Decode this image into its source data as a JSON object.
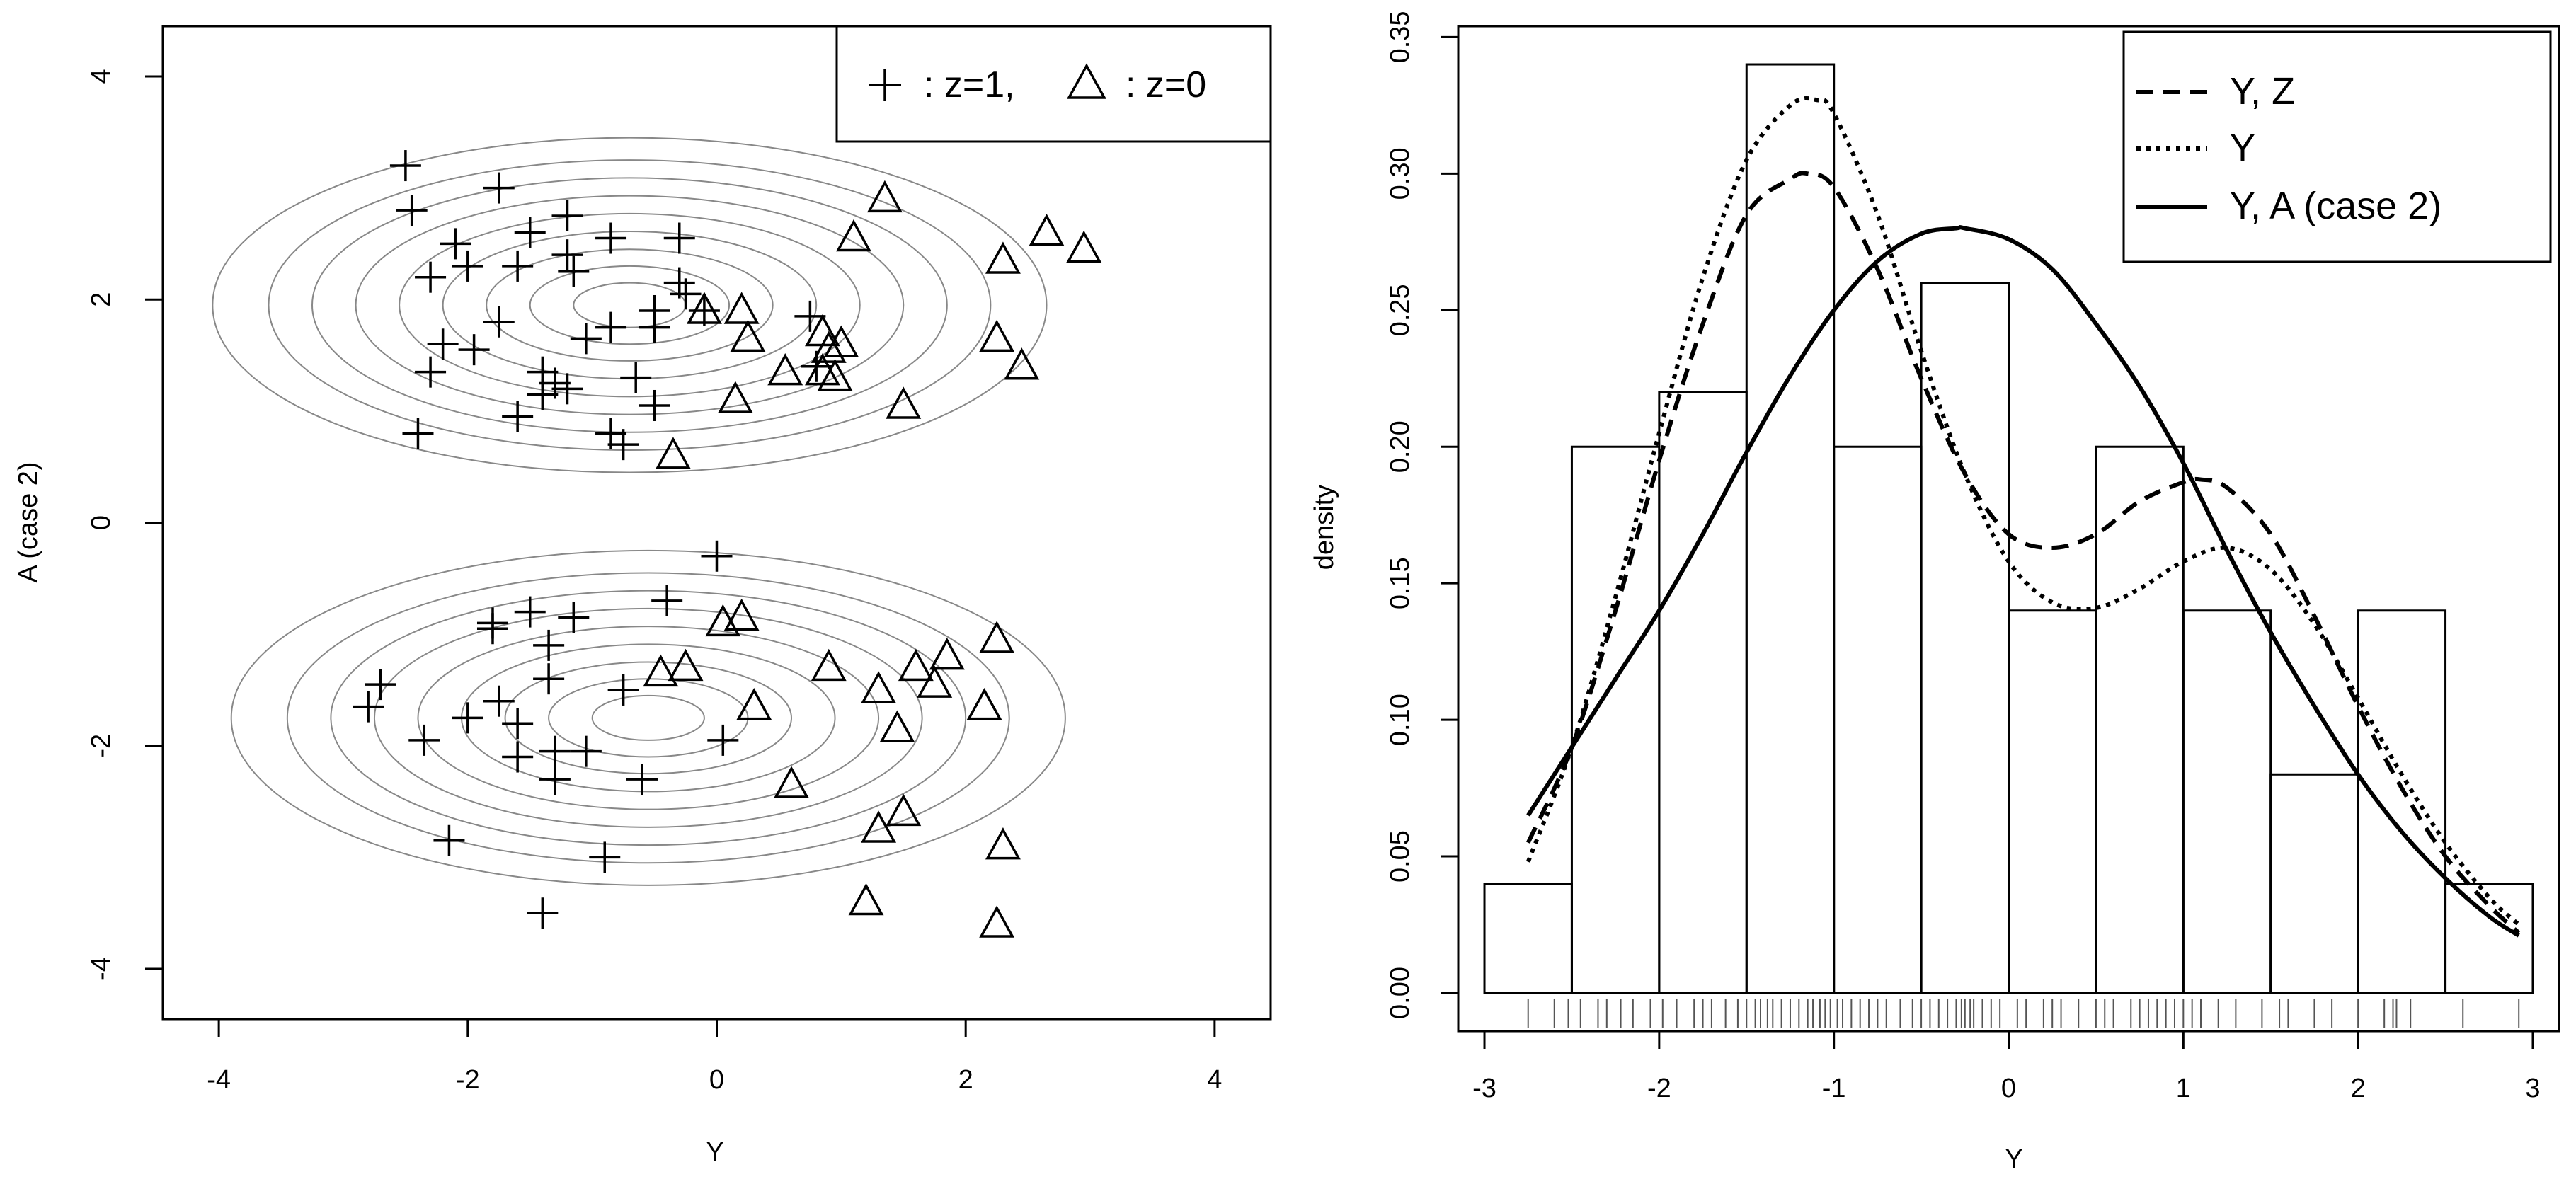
{
  "chart_data": [
    {
      "type": "scatter",
      "xlabel": "Y",
      "ylabel": "A (case 2)",
      "xlim": [
        -4.45,
        4.45
      ],
      "ylim": [
        -4.45,
        4.45
      ],
      "xticks": [
        "-4",
        "-2",
        "0",
        "2",
        "4"
      ],
      "xtick_values": [
        -4,
        -2,
        0,
        2,
        4
      ],
      "yticks": [
        "-4",
        "-2",
        "0",
        "2",
        "4"
      ],
      "ytick_values": [
        -4,
        -2,
        0,
        2,
        4
      ],
      "legend": {
        "position": "top-right",
        "entries": [
          {
            "symbol": "plus",
            "label": ": z=1,"
          },
          {
            "symbol": "triangle",
            "label": ": z=0"
          }
        ]
      },
      "contours": [
        {
          "cx": -0.7,
          "cy": 1.95,
          "rx": [
            0.45,
            0.8,
            1.15,
            1.5,
            1.85,
            2.2,
            2.55,
            2.9,
            3.35
          ],
          "ry": [
            0.2,
            0.35,
            0.5,
            0.66,
            0.82,
            0.98,
            1.14,
            1.3,
            1.5
          ]
        },
        {
          "cx": -0.55,
          "cy": -1.75,
          "rx": [
            0.45,
            0.8,
            1.15,
            1.5,
            1.85,
            2.2,
            2.55,
            2.9,
            3.35
          ],
          "ry": [
            0.2,
            0.35,
            0.5,
            0.66,
            0.82,
            0.98,
            1.14,
            1.3,
            1.5
          ]
        }
      ],
      "series": [
        {
          "name": "z=1",
          "marker": "plus",
          "points": [
            [
              -2.5,
              3.2
            ],
            [
              -2.45,
              2.8
            ],
            [
              -1.75,
              3.0
            ],
            [
              -2.3,
              2.2
            ],
            [
              -2.1,
              2.5
            ],
            [
              -2.0,
              2.3
            ],
            [
              -1.5,
              2.6
            ],
            [
              -1.2,
              2.75
            ],
            [
              -1.2,
              2.4
            ],
            [
              -0.85,
              2.55
            ],
            [
              -0.3,
              2.55
            ],
            [
              -1.6,
              2.3
            ],
            [
              -1.15,
              2.25
            ],
            [
              -0.3,
              2.15
            ],
            [
              -0.25,
              2.05
            ],
            [
              -1.75,
              1.8
            ],
            [
              -2.2,
              1.6
            ],
            [
              -1.95,
              1.55
            ],
            [
              -2.3,
              1.35
            ],
            [
              -1.4,
              1.35
            ],
            [
              -1.3,
              1.25
            ],
            [
              -1.4,
              1.15
            ],
            [
              -1.05,
              1.65
            ],
            [
              -0.85,
              1.75
            ],
            [
              -0.5,
              1.75
            ],
            [
              -0.5,
              1.9
            ],
            [
              -0.1,
              1.9
            ],
            [
              -0.65,
              1.3
            ],
            [
              -1.2,
              1.2
            ],
            [
              -0.5,
              1.05
            ],
            [
              -1.6,
              0.95
            ],
            [
              -2.4,
              0.8
            ],
            [
              -0.85,
              0.8
            ],
            [
              -0.75,
              0.7
            ],
            [
              0.75,
              1.85
            ],
            [
              0.8,
              1.4
            ],
            [
              0.0,
              -0.3
            ],
            [
              -0.4,
              -0.7
            ],
            [
              -1.5,
              -0.8
            ],
            [
              -1.8,
              -0.9
            ],
            [
              -1.15,
              -0.85
            ],
            [
              -1.35,
              -1.1
            ],
            [
              -1.35,
              -1.4
            ],
            [
              -0.75,
              -1.5
            ],
            [
              -2.7,
              -1.45
            ],
            [
              -2.8,
              -1.65
            ],
            [
              -1.75,
              -1.6
            ],
            [
              -1.6,
              -1.8
            ],
            [
              -2.35,
              -1.95
            ],
            [
              -2.0,
              -1.75
            ],
            [
              -1.05,
              -2.05
            ],
            [
              -1.6,
              -2.1
            ],
            [
              -1.3,
              -2.3
            ],
            [
              -0.6,
              -2.3
            ],
            [
              0.05,
              -1.95
            ],
            [
              -2.15,
              -2.85
            ],
            [
              -0.9,
              -3.0
            ],
            [
              -1.4,
              -3.5
            ],
            [
              -1.3,
              -2.05
            ],
            [
              -1.8,
              -0.95
            ]
          ]
        },
        {
          "name": "z=0",
          "marker": "triangle",
          "points": [
            [
              1.35,
              2.9
            ],
            [
              2.65,
              2.6
            ],
            [
              2.95,
              2.45
            ],
            [
              2.3,
              2.35
            ],
            [
              1.1,
              2.55
            ],
            [
              0.2,
              1.9
            ],
            [
              -0.1,
              1.9
            ],
            [
              0.25,
              1.65
            ],
            [
              0.85,
              1.7
            ],
            [
              0.9,
              1.55
            ],
            [
              1.0,
              1.6
            ],
            [
              0.95,
              1.3
            ],
            [
              0.85,
              1.35
            ],
            [
              0.55,
              1.35
            ],
            [
              0.15,
              1.1
            ],
            [
              1.5,
              1.05
            ],
            [
              2.25,
              1.65
            ],
            [
              2.45,
              1.4
            ],
            [
              -0.35,
              0.6
            ],
            [
              0.05,
              -0.9
            ],
            [
              0.2,
              -0.85
            ],
            [
              2.25,
              -1.05
            ],
            [
              1.85,
              -1.2
            ],
            [
              1.6,
              -1.3
            ],
            [
              0.9,
              -1.3
            ],
            [
              -0.25,
              -1.3
            ],
            [
              -0.45,
              -1.35
            ],
            [
              1.3,
              -1.5
            ],
            [
              1.75,
              -1.45
            ],
            [
              2.15,
              -1.65
            ],
            [
              0.3,
              -1.65
            ],
            [
              1.45,
              -1.85
            ],
            [
              0.6,
              -2.35
            ],
            [
              1.3,
              -2.75
            ],
            [
              1.5,
              -2.6
            ],
            [
              2.3,
              -2.9
            ],
            [
              1.2,
              -3.4
            ],
            [
              2.25,
              -3.6
            ]
          ]
        }
      ]
    },
    {
      "type": "histogram",
      "xlabel": "Y",
      "ylabel": "density",
      "xlim": [
        -3.15,
        3.15
      ],
      "ylim": [
        -0.014,
        0.354
      ],
      "xticks": [
        "-3",
        "-2",
        "-1",
        "0",
        "1",
        "2",
        "3"
      ],
      "xtick_values": [
        -3,
        -2,
        -1,
        0,
        1,
        2,
        3
      ],
      "yticks": [
        "0.00",
        "0.05",
        "0.10",
        "0.15",
        "0.20",
        "0.25",
        "0.30",
        "0.35"
      ],
      "ytick_values": [
        0,
        0.05,
        0.1,
        0.15,
        0.2,
        0.25,
        0.3,
        0.35
      ],
      "bins": [
        {
          "from": -3.0,
          "to": -2.5,
          "density": 0.04
        },
        {
          "from": -2.5,
          "to": -2.0,
          "density": 0.2
        },
        {
          "from": -2.0,
          "to": -1.5,
          "density": 0.22
        },
        {
          "from": -1.5,
          "to": -1.0,
          "density": 0.34
        },
        {
          "from": -1.0,
          "to": -0.5,
          "density": 0.2
        },
        {
          "from": -0.5,
          "to": 0.0,
          "density": 0.26
        },
        {
          "from": 0.0,
          "to": 0.5,
          "density": 0.14
        },
        {
          "from": 0.5,
          "to": 1.0,
          "density": 0.2
        },
        {
          "from": 1.0,
          "to": 1.5,
          "density": 0.14
        },
        {
          "from": 1.5,
          "to": 2.0,
          "density": 0.08
        },
        {
          "from": 2.0,
          "to": 2.5,
          "density": 0.14
        },
        {
          "from": 2.5,
          "to": 3.0,
          "density": 0.04
        }
      ],
      "legend": {
        "position": "top-right",
        "entries": [
          {
            "style": "dashed",
            "label": "Y, Z"
          },
          {
            "style": "dotted",
            "label": "Y"
          },
          {
            "style": "solid",
            "label": "Y, A (case 2)"
          }
        ]
      },
      "series": [
        {
          "name": "Y, Z",
          "style": "dashed",
          "x": [
            -2.75,
            -2.5,
            -2.25,
            -2.0,
            -1.75,
            -1.5,
            -1.25,
            -1.15,
            -1.0,
            -0.75,
            -0.5,
            -0.25,
            0.0,
            0.25,
            0.5,
            0.75,
            1.0,
            1.1,
            1.25,
            1.5,
            1.75,
            2.0,
            2.25,
            2.5,
            2.75,
            2.92
          ],
          "y": [
            0.055,
            0.09,
            0.14,
            0.195,
            0.245,
            0.285,
            0.298,
            0.3,
            0.295,
            0.265,
            0.225,
            0.19,
            0.168,
            0.163,
            0.168,
            0.18,
            0.187,
            0.188,
            0.185,
            0.168,
            0.138,
            0.105,
            0.075,
            0.05,
            0.032,
            0.022
          ]
        },
        {
          "name": "Y",
          "style": "dotted",
          "x": [
            -2.75,
            -2.5,
            -2.25,
            -2.0,
            -1.75,
            -1.5,
            -1.25,
            -1.1,
            -1.0,
            -0.75,
            -0.5,
            -0.25,
            0.0,
            0.25,
            0.5,
            0.75,
            1.0,
            1.25,
            1.5,
            1.75,
            2.0,
            2.25,
            2.5,
            2.75,
            2.92
          ],
          "y": [
            0.048,
            0.09,
            0.145,
            0.205,
            0.262,
            0.305,
            0.325,
            0.327,
            0.322,
            0.285,
            0.235,
            0.19,
            0.158,
            0.143,
            0.141,
            0.148,
            0.158,
            0.163,
            0.155,
            0.135,
            0.108,
            0.08,
            0.055,
            0.035,
            0.025
          ]
        },
        {
          "name": "Y, A (case 2)",
          "style": "solid",
          "x": [
            -2.75,
            -2.5,
            -2.25,
            -2.0,
            -1.75,
            -1.5,
            -1.25,
            -1.0,
            -0.75,
            -0.5,
            -0.3,
            -0.25,
            0.0,
            0.25,
            0.5,
            0.75,
            1.0,
            1.25,
            1.5,
            1.75,
            2.0,
            2.25,
            2.5,
            2.75,
            2.92
          ],
          "y": [
            0.065,
            0.09,
            0.115,
            0.14,
            0.168,
            0.198,
            0.226,
            0.25,
            0.268,
            0.278,
            0.28,
            0.28,
            0.276,
            0.265,
            0.245,
            0.222,
            0.194,
            0.162,
            0.132,
            0.105,
            0.08,
            0.059,
            0.042,
            0.028,
            0.021
          ]
        }
      ],
      "rug": [
        -2.75,
        -2.6,
        -2.52,
        -2.45,
        -2.35,
        -2.3,
        -2.22,
        -2.15,
        -2.05,
        -1.98,
        -1.9,
        -1.8,
        -1.75,
        -1.7,
        -1.62,
        -1.55,
        -1.5,
        -1.45,
        -1.42,
        -1.38,
        -1.35,
        -1.3,
        -1.25,
        -1.2,
        -1.15,
        -1.12,
        -1.08,
        -1.05,
        -1.02,
        -0.98,
        -0.95,
        -0.9,
        -0.85,
        -0.8,
        -0.75,
        -0.7,
        -0.62,
        -0.55,
        -0.5,
        -0.45,
        -0.4,
        -0.35,
        -0.3,
        -0.27,
        -0.25,
        -0.22,
        -0.2,
        -0.15,
        -0.1,
        -0.05,
        0.05,
        0.1,
        0.2,
        0.25,
        0.3,
        0.4,
        0.5,
        0.55,
        0.6,
        0.7,
        0.75,
        0.8,
        0.85,
        0.9,
        0.95,
        1.0,
        1.05,
        1.1,
        1.2,
        1.3,
        1.45,
        1.55,
        1.6,
        1.75,
        1.85,
        2.0,
        2.15,
        2.2,
        2.22,
        2.3,
        2.6,
        2.92
      ]
    }
  ]
}
